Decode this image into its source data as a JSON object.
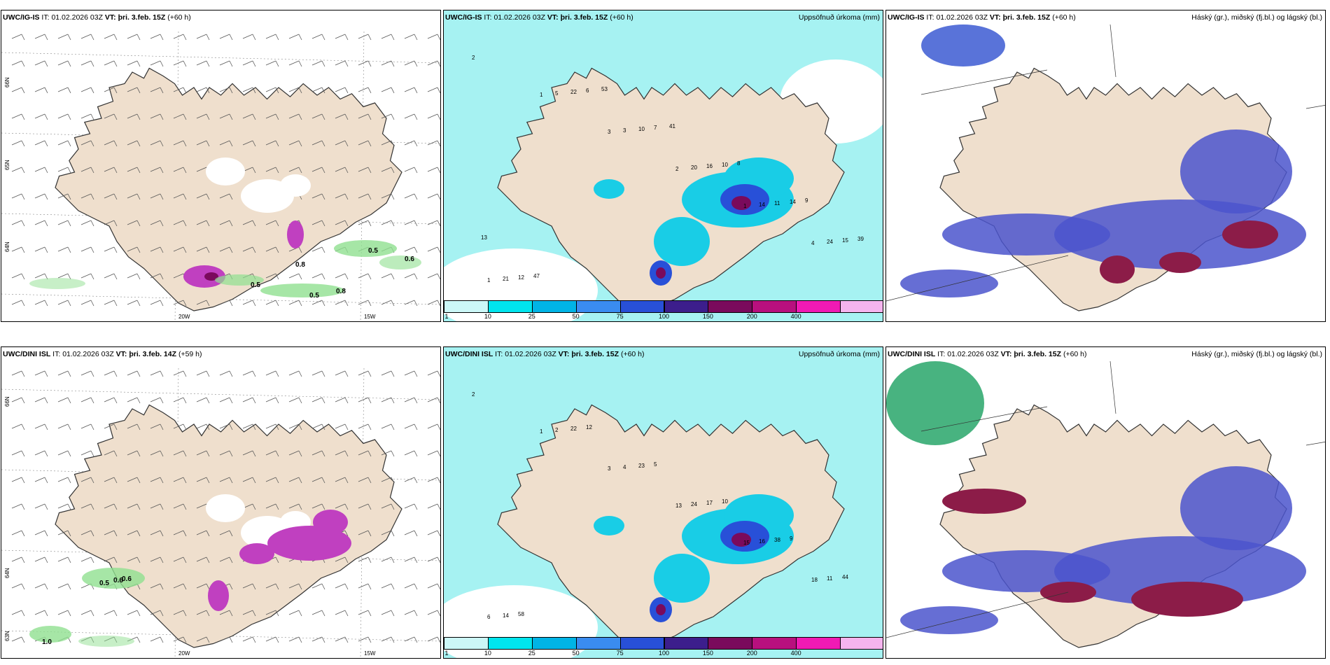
{
  "panels": [
    {
      "model": "UWC/IG-IS",
      "it_label": "IT:",
      "it": "01.02.2026 03Z",
      "vt_label": "VT:",
      "vt": "þri. 3.feb. 15Z",
      "lead": "(+60 h)",
      "right_title": ""
    },
    {
      "model": "UWC/IG-IS",
      "it_label": "IT:",
      "it": "01.02.2026 03Z",
      "vt_label": "VT:",
      "vt": "þri. 3.feb. 15Z",
      "lead": "(+60 h)",
      "right_title": "Uppsöfnuð úrkoma (mm)"
    },
    {
      "model": "UWC/IG-IS",
      "it_label": "IT:",
      "it": "01.02.2026 03Z",
      "vt_label": "VT:",
      "vt": "þri. 3.feb. 15Z",
      "lead": "(+60 h)",
      "right_title": "Háský (gr.), miðský (fj.bl.) og lágský (bl.)"
    },
    {
      "model": "UWC/DINI ISL",
      "it_label": "IT:",
      "it": "01.02.2026 03Z",
      "vt_label": "VT:",
      "vt": "þri. 3.feb. 14Z",
      "lead": "(+59 h)",
      "right_title": ""
    },
    {
      "model": "UWC/DINI ISL",
      "it_label": "IT:",
      "it": "01.02.2026 03Z",
      "vt_label": "VT:",
      "vt": "þri. 3.feb. 15Z",
      "lead": "(+60 h)",
      "right_title": "Uppsöfnuð úrkoma (mm)"
    },
    {
      "model": "UWC/DINI ISL",
      "it_label": "IT:",
      "it": "01.02.2026 03Z",
      "vt_label": "VT:",
      "vt": "þri. 3.feb. 15Z",
      "lead": "(+60 h)",
      "right_title": "Háský (gr.), miðský (fj.bl.) og lágský (bl.)"
    }
  ],
  "axis_labels": {
    "lat66": "66N",
    "lat64": "64N",
    "lat63": "63N",
    "lon20": "20W",
    "lon15": "15W"
  },
  "colorbar": {
    "labels": [
      "1",
      "10",
      "25",
      "50",
      "75",
      "100",
      "150",
      "200",
      "400"
    ],
    "colors": [
      "#ccf7f7",
      "#00e5ee",
      "#00b4e6",
      "#3a8cf0",
      "#2850d8",
      "#3c1e8c",
      "#7a0a5c",
      "#b8107e",
      "#f01ab4",
      "#f5b4ee"
    ]
  },
  "colors": {
    "land": "#efdfcd",
    "precip_light": "#a6f2f2",
    "precip_mid": "#19cde6",
    "precip_heavy": "#2850d8",
    "precip_extreme": "#7a0a5c",
    "cloud_mid": "#4b55cc",
    "cloud_low": "#3c5ad2",
    "cloud_high": "#8c1c48",
    "green_low": "#90e090",
    "purple": "#c040c0"
  },
  "map_labels": {
    "wind_top": [
      "0.8",
      "0.5",
      "0.5",
      "0.6",
      "0.5",
      "0.8"
    ],
    "wind_bottom": [
      "0.5",
      "0.6",
      "0.6",
      "1.0"
    ],
    "precip_top": [
      "2",
      "1",
      "3",
      "2",
      "1",
      "4",
      "1",
      "5",
      "3",
      "20",
      "14",
      "24",
      "21",
      "22",
      "10",
      "16",
      "11",
      "15",
      "12",
      "6",
      "7",
      "10",
      "14",
      "39",
      "47",
      "53",
      "41",
      "8",
      "9",
      "13"
    ],
    "precip_bottom": [
      "2",
      "1",
      "3",
      "13",
      "15",
      "18",
      "6",
      "2",
      "4",
      "24",
      "16",
      "11",
      "14",
      "22",
      "23",
      "17",
      "38",
      "44",
      "58",
      "12",
      "5",
      "10",
      "9"
    ]
  }
}
